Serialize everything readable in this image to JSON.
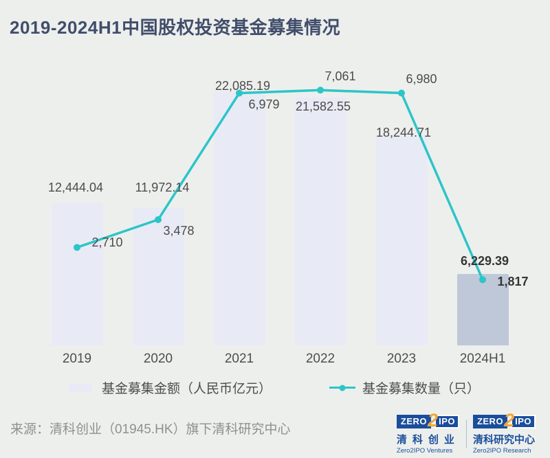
{
  "page": {
    "title": "2019-2024H1中国股权投资基金募集情况"
  },
  "chart_data": {
    "type": "bar+line",
    "categories": [
      "2019",
      "2020",
      "2021",
      "2022",
      "2023",
      "2024H1"
    ],
    "series": [
      {
        "name": "基金募集金额（人民币亿元）",
        "type": "bar",
        "values": [
          12444.04,
          11972.14,
          22085.19,
          21582.55,
          18244.71,
          6229.39
        ],
        "labels": [
          "12,444.04",
          "11,972.14",
          "22,085.19",
          "21,582.55",
          "18,244.71",
          "6,229.39"
        ]
      },
      {
        "name": "基金募集数量（只）",
        "type": "line",
        "values": [
          2710,
          3478,
          6979,
          7061,
          6980,
          1817
        ],
        "labels": [
          "2,710",
          "3,478",
          "6,979",
          "7,061",
          "6,980",
          "1,817"
        ]
      }
    ],
    "bar_ylim": [
      0,
      24400
    ],
    "line_ylim": [
      0,
      7750
    ],
    "grid": false,
    "legend_position": "bottom",
    "highlight_category": "2024H1",
    "xlabel": "",
    "ylabel": ""
  },
  "colors": {
    "background": "#edefed",
    "bar": "#e8ebf5",
    "bar_highlight": "#bfc8d8",
    "line": "#2cc5c8",
    "title": "#414e6a",
    "label": "#4b4b4b",
    "source": "#8f8f8f",
    "logo_blue": "#1a4e9c",
    "logo_gold": "#f0a73a"
  },
  "legend": {
    "bar_label": "基金募集金额（人民币亿元）",
    "line_label": "基金募集数量（只）"
  },
  "footer": {
    "source": "来源：清科创业（01945.HK）旗下清科研究中心",
    "logos": [
      {
        "zero": "ZERO",
        "two": "2",
        "ipo": "IPO",
        "cn": "清科创业",
        "en": "Zero2IPO Ventures"
      },
      {
        "zero": "ZERO",
        "two": "2",
        "ipo": "IPO",
        "cn": "清科研究中心",
        "en": "Zero2IPO Research"
      }
    ]
  }
}
